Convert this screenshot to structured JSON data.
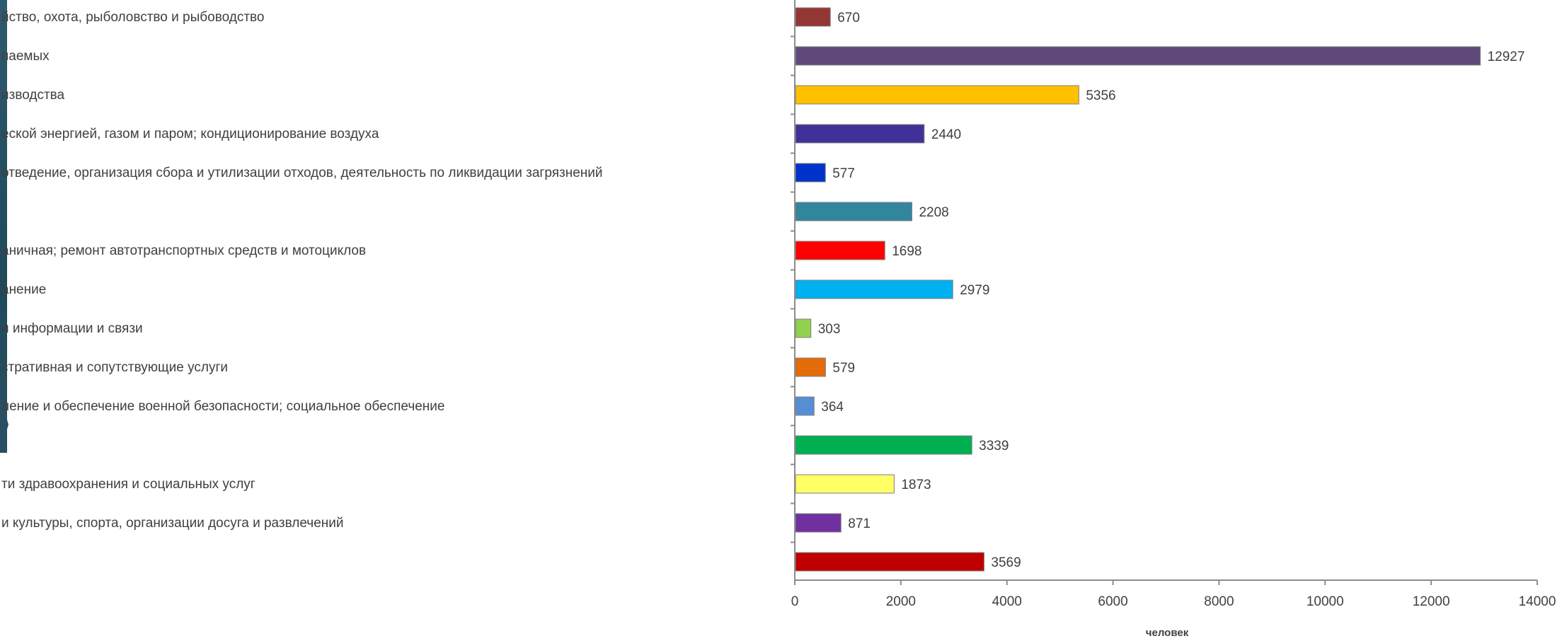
{
  "chart_data": {
    "type": "bar",
    "orientation": "horizontal",
    "categories": [
      "йство, охота, рыболовство и рыбоводство",
      "паемых",
      "изводства",
      "еской энергией, газом и паром; кондиционирование воздуха",
      "отведение, организация сбора и утилизации отходов, деятельность по ликвидации загрязнений",
      "",
      "аничная; ремонт автотранспортных средств и мотоциклов",
      "анение",
      "и информации и связи",
      "стративная и сопутствующие услуги",
      "ление и обеспечение военной безопасности; социальное обеспечение",
      "",
      "ти здравоохранения и социальных услуг",
      "и культуры, спорта, организации досуга и развлечений",
      ""
    ],
    "values": [
      670,
      12927,
      5356,
      2440,
      577,
      2208,
      1698,
      2979,
      303,
      579,
      364,
      3339,
      1873,
      871,
      3569
    ],
    "value_labels": [
      "670",
      "12927",
      "5356",
      "2440",
      "577",
      "2208",
      "1698",
      "2979",
      "303",
      "579",
      "364",
      "3339",
      "1873",
      "871",
      "3569"
    ],
    "colors": [
      "#943634",
      "#5f497a",
      "#ffc000",
      "#403198",
      "#0033cc",
      "#31859c",
      "#ff0000",
      "#00b0f0",
      "#92d050",
      "#e36c09",
      "#558ed5",
      "#00b050",
      "#ffff66",
      "#7030a0",
      "#c00000"
    ],
    "xlim": [
      0,
      14000
    ],
    "xticks": [
      "0",
      "2000",
      "4000",
      "6000",
      "8000",
      "10000",
      "12000",
      "14000"
    ],
    "xlabel": "человек",
    "ylabel": "",
    "title": "",
    "grid": false,
    "legend": "none"
  }
}
